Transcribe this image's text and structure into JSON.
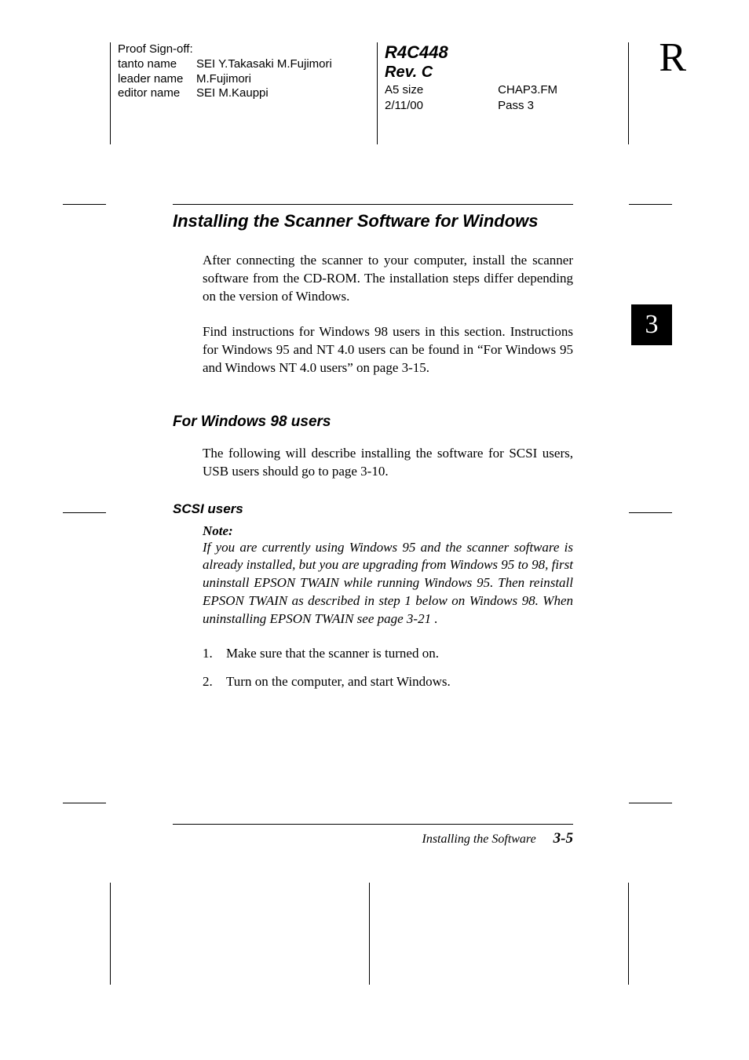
{
  "header": {
    "proof_signoff_label": "Proof Sign-off:",
    "rows": [
      {
        "label": "tanto name",
        "value": "SEI Y.Takasaki M.Fujimori"
      },
      {
        "label": "leader name",
        "value": "M.Fujimori"
      },
      {
        "label": "editor name",
        "value": "SEI M.Kauppi"
      }
    ],
    "doc_code": "R4C448",
    "doc_rev": "Rev. C",
    "size": "A5 size",
    "date": "2/11/00",
    "file": "CHAP3.FM",
    "pass": "Pass 3",
    "right_letter": "R"
  },
  "chapter_tab": "3",
  "content": {
    "h1": "Installing the Scanner Software for Windows",
    "p1": "After connecting the scanner to your computer, install the scanner software from the CD-ROM. The installation steps differ depending on the version of Windows.",
    "p2": "Find instructions for Windows 98 users in this section. Instructions for Windows 95 and NT 4.0 users can be found in “For Windows 95 and Windows NT 4.0 users” on page 3-15.",
    "h2": "For Windows 98 users",
    "p3": "The following will describe installing the software for SCSI users, USB users should go to page 3-10.",
    "h3": "SCSI users",
    "note_head": "Note:",
    "note_body": "If you are currently using Windows 95 and the scanner software is already installed, but you are upgrading from Windows 95 to 98, first uninstall EPSON TWAIN  while running Windows 95. Then reinstall EPSON TWAIN as described in step 1 below on Windows 98. When uninstalling EPSON TWAIN see page 3-21 .",
    "steps": [
      "Make sure that the scanner is turned on.",
      "Turn on the computer, and start Windows."
    ]
  },
  "footer": {
    "section": "Installing the Software",
    "page": "3-5"
  },
  "colors": {
    "text": "#000000",
    "background": "#ffffff",
    "tab_bg": "#000000",
    "tab_fg": "#ffffff"
  },
  "fonts": {
    "serif": "Georgia, Times New Roman, serif",
    "sans": "Helvetica, Arial, sans-serif"
  }
}
